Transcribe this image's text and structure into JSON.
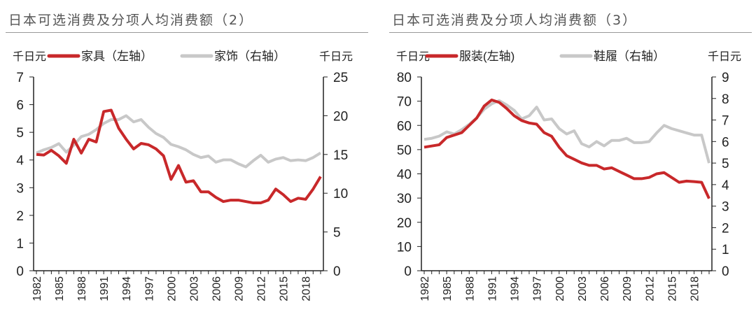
{
  "chart_data": [
    {
      "type": "line",
      "title": "日本可选消费及分项人均消费额（2）",
      "left_unit": "千日元",
      "right_unit": "千日元",
      "x": [
        1982,
        1983,
        1984,
        1985,
        1986,
        1987,
        1988,
        1989,
        1990,
        1991,
        1992,
        1993,
        1994,
        1995,
        1996,
        1997,
        1998,
        1999,
        2000,
        2001,
        2002,
        2003,
        2004,
        2005,
        2006,
        2007,
        2008,
        2009,
        2010,
        2011,
        2012,
        2013,
        2014,
        2015,
        2016,
        2017,
        2018,
        2019,
        2020
      ],
      "xticks": [
        "1982",
        "1985",
        "1988",
        "1991",
        "1994",
        "1997",
        "2000",
        "2003",
        "2006",
        "2009",
        "2012",
        "2015",
        "2018"
      ],
      "ylim_left": [
        0,
        7
      ],
      "yticks_left": [
        "0",
        "1",
        "2",
        "3",
        "4",
        "5",
        "6",
        "7"
      ],
      "ylim_right": [
        0,
        25
      ],
      "yticks_right": [
        "0",
        "5",
        "10",
        "15",
        "20",
        "25"
      ],
      "series": [
        {
          "name": "家具（左轴）",
          "axis": "left",
          "color": "#c8282a",
          "values": [
            4.2,
            4.18,
            4.35,
            4.15,
            3.88,
            4.75,
            4.25,
            4.75,
            4.65,
            5.75,
            5.8,
            5.15,
            4.75,
            4.4,
            4.6,
            4.55,
            4.4,
            4.15,
            3.3,
            3.8,
            3.2,
            3.25,
            2.85,
            2.85,
            2.65,
            2.5,
            2.55,
            2.55,
            2.5,
            2.45,
            2.45,
            2.55,
            2.95,
            2.75,
            2.5,
            2.62,
            2.58,
            2.95,
            3.4
          ]
        },
        {
          "name": "家饰（右轴）",
          "axis": "right",
          "color": "#c8c8c8",
          "values": [
            15.2,
            15.6,
            15.9,
            16.4,
            15.3,
            16.2,
            17.3,
            17.6,
            18.2,
            19.0,
            19.5,
            19.5,
            20.0,
            19.2,
            19.5,
            18.5,
            17.7,
            17.2,
            16.3,
            16.0,
            15.6,
            15.0,
            14.6,
            14.8,
            14.0,
            14.3,
            14.3,
            13.8,
            13.4,
            14.2,
            14.9,
            14.0,
            14.4,
            14.6,
            14.2,
            14.3,
            14.2,
            14.6,
            15.2
          ]
        }
      ]
    },
    {
      "type": "line",
      "title": "日本可选消费及分项人均消费额（3）",
      "left_unit": "千日元",
      "right_unit": "千日元",
      "x": [
        1982,
        1983,
        1984,
        1985,
        1986,
        1987,
        1988,
        1989,
        1990,
        1991,
        1992,
        1993,
        1994,
        1995,
        1996,
        1997,
        1998,
        1999,
        2000,
        2001,
        2002,
        2003,
        2004,
        2005,
        2006,
        2007,
        2008,
        2009,
        2010,
        2011,
        2012,
        2013,
        2014,
        2015,
        2016,
        2017,
        2018,
        2019,
        2020
      ],
      "xticks": [
        "1982",
        "1985",
        "1988",
        "1991",
        "1994",
        "1997",
        "2000",
        "2003",
        "2006",
        "2009",
        "2012",
        "2015",
        "2018"
      ],
      "ylim_left": [
        0,
        80
      ],
      "yticks_left": [
        "0",
        "10",
        "20",
        "30",
        "40",
        "50",
        "60",
        "70",
        "80"
      ],
      "ylim_right": [
        0,
        9
      ],
      "yticks_right": [
        "0",
        "1",
        "2",
        "3",
        "4",
        "5",
        "6",
        "7",
        "8",
        "9"
      ],
      "series": [
        {
          "name": "服装(左轴)",
          "axis": "left",
          "color": "#c8282a",
          "values": [
            51,
            51.5,
            52,
            55,
            56,
            57,
            60,
            63,
            68,
            70.5,
            69.5,
            67,
            64,
            62,
            61,
            60.5,
            57,
            55.5,
            51,
            47.5,
            46,
            44.5,
            43.5,
            43.5,
            42,
            42.5,
            41,
            39.5,
            38,
            38,
            38.5,
            40,
            40.5,
            38.5,
            36.5,
            37,
            36.8,
            36.5,
            29.8
          ]
        },
        {
          "name": "鞋履（右轴）",
          "axis": "right",
          "color": "#c8c8c8",
          "values": [
            6.1,
            6.15,
            6.25,
            6.45,
            6.35,
            6.55,
            6.8,
            7.1,
            7.5,
            7.75,
            7.9,
            7.7,
            7.45,
            7.05,
            7.2,
            7.6,
            7.0,
            7.05,
            6.6,
            6.35,
            6.5,
            5.9,
            5.75,
            6.0,
            5.8,
            6.05,
            6.05,
            6.15,
            5.95,
            5.95,
            6.0,
            6.4,
            6.75,
            6.6,
            6.5,
            6.4,
            6.3,
            6.3,
            5.0
          ]
        }
      ]
    }
  ]
}
